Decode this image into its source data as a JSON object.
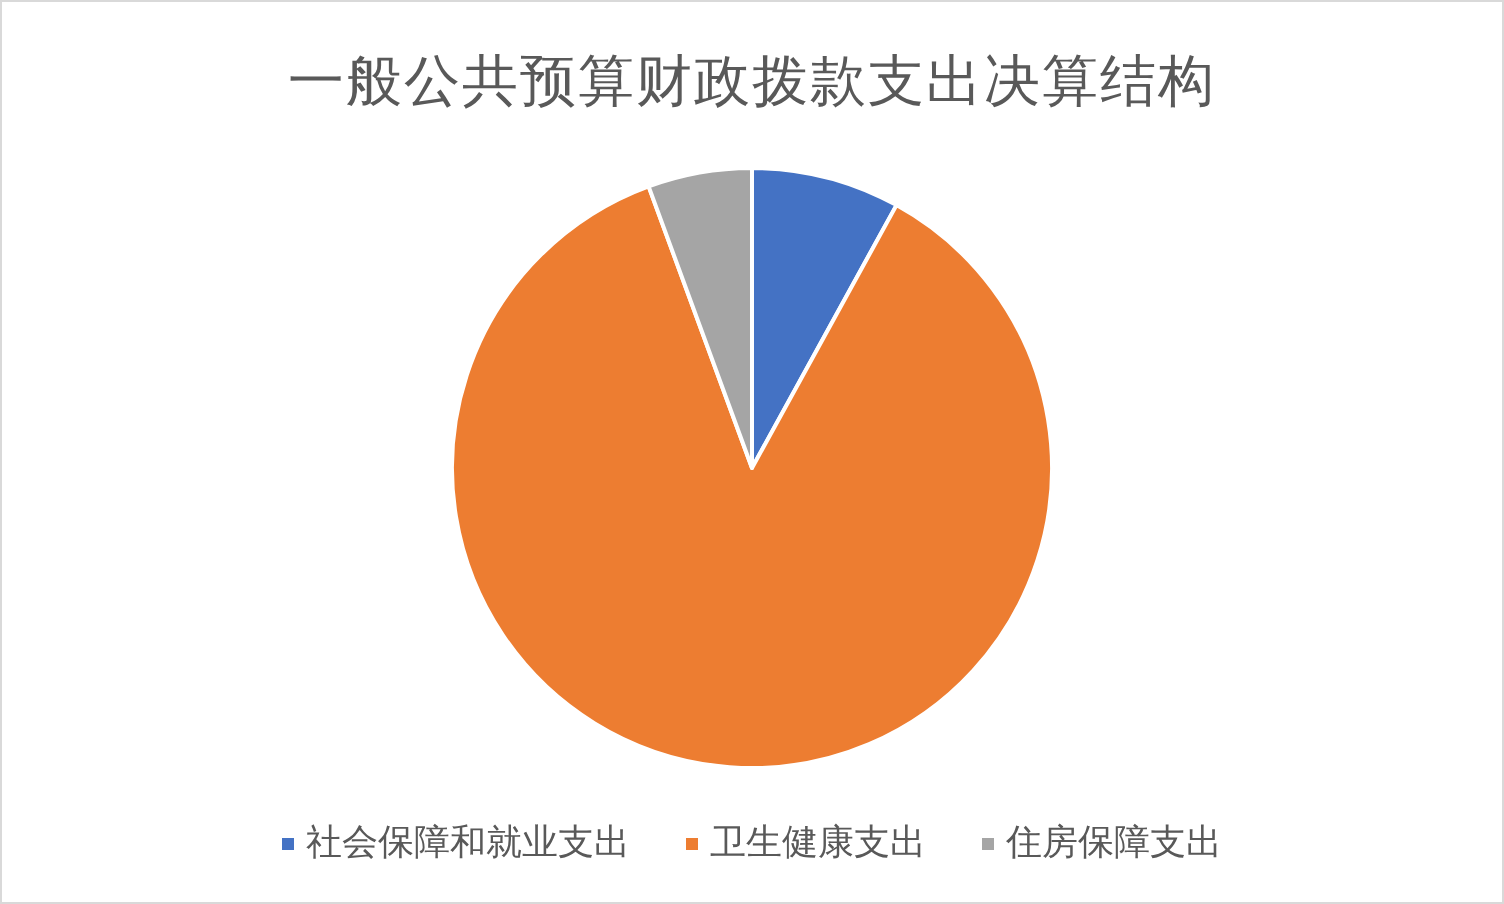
{
  "chart_data": {
    "type": "pie",
    "title": "一般公共预算财政拨款支出决算结构",
    "categories": [
      "社会保障和就业支出",
      "卫生健康支出",
      "住房保障支出"
    ],
    "values": [
      8.0,
      86.4,
      5.6
    ],
    "colors": [
      "#4472c4",
      "#ed7d31",
      "#a5a5a5"
    ],
    "legend": "bottom"
  }
}
